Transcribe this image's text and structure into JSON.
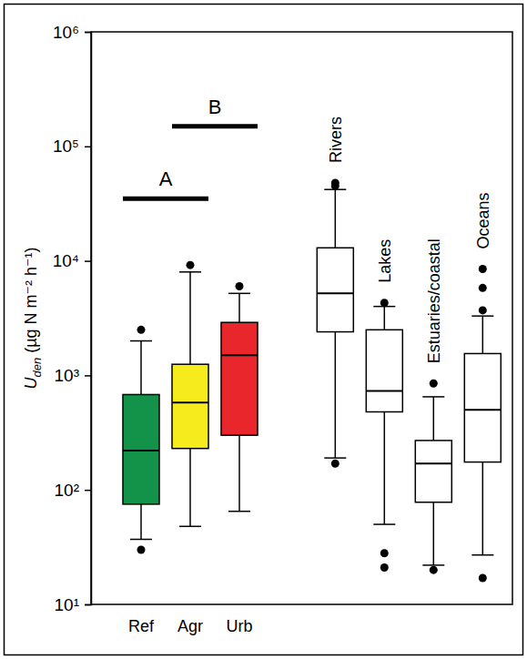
{
  "chart_data": {
    "type": "box",
    "ylabel": "Uden (µg N m⁻² h⁻¹)",
    "log": "y",
    "grid": false,
    "ylim": [
      10,
      1000000
    ],
    "yticks": [
      {
        "value": 10,
        "label": "10¹"
      },
      {
        "value": 100,
        "label": "10²"
      },
      {
        "value": 1000,
        "label": "10³"
      },
      {
        "value": 10000,
        "label": "10⁴"
      },
      {
        "value": 100000,
        "label": "10⁵"
      },
      {
        "value": 1000000,
        "label": "10⁶"
      }
    ],
    "categories": [
      "Ref",
      "Agr",
      "Urb",
      "Rivers",
      "Lakes",
      "Estuaries/coastal",
      "Oceans"
    ],
    "colors": [
      "#13924a",
      "#f6eb1c",
      "#e8262b",
      "#ffffff",
      "#ffffff",
      "#ffffff",
      "#ffffff"
    ],
    "whisker_low": [
      37,
      48,
      65,
      190,
      50,
      22,
      27
    ],
    "q1": [
      75,
      230,
      300,
      2400,
      480,
      78,
      175
    ],
    "median": [
      220,
      580,
      1500,
      5200,
      730,
      170,
      500
    ],
    "q3": [
      680,
      1250,
      2900,
      13000,
      2500,
      270,
      1550
    ],
    "whisker_high": [
      2000,
      8000,
      5200,
      42000,
      4000,
      650,
      3300
    ],
    "outliers": [
      [
        2500,
        30
      ],
      [
        9200
      ],
      [
        6000
      ],
      [
        48000,
        45000,
        170
      ],
      [
        4300,
        28,
        21
      ],
      [
        850,
        20
      ],
      [
        8500,
        5800,
        3700,
        17
      ]
    ],
    "annotations": [
      {
        "text": "A",
        "from": "Ref",
        "to": "Agr",
        "y": 35000
      },
      {
        "text": "B",
        "from": "Agr",
        "to": "Urb",
        "y": 150000
      }
    ]
  }
}
